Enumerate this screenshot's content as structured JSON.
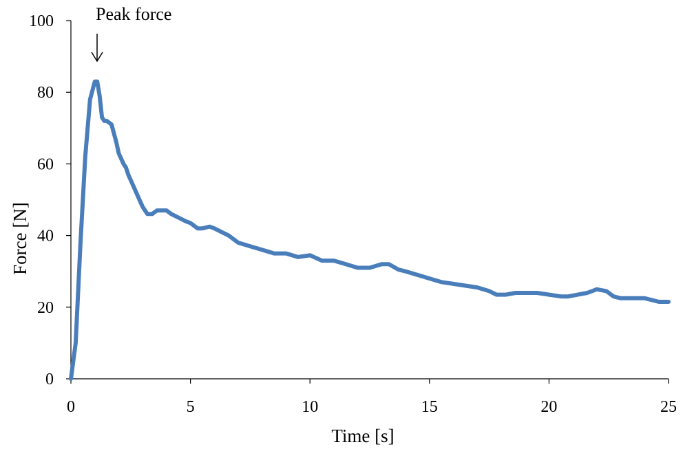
{
  "chart_data": {
    "type": "line",
    "title": "",
    "xlabel": "Time [s]",
    "ylabel": "Force [N]",
    "xlim": [
      0,
      25
    ],
    "ylim": [
      0,
      100
    ],
    "xticks": [
      0,
      5,
      10,
      15,
      20,
      25
    ],
    "yticks": [
      0,
      20,
      40,
      60,
      80,
      100
    ],
    "grid": false,
    "line_color": "#4a7ebb",
    "annotation": {
      "text": "Peak force",
      "x": 1.1,
      "y": 83
    },
    "series": [
      {
        "x": [
          0,
          0.2,
          0.4,
          0.6,
          0.8,
          1.0,
          1.1,
          1.2,
          1.3,
          1.4,
          1.5,
          1.7,
          1.9,
          2.0,
          2.2,
          2.3,
          2.4,
          2.6,
          2.8,
          3.0,
          3.2,
          3.4,
          3.6,
          3.8,
          4.0,
          4.2,
          4.5,
          4.8,
          5.0,
          5.3,
          5.5,
          5.8,
          6.0,
          6.3,
          6.6,
          7.0,
          7.5,
          8.0,
          8.5,
          9.0,
          9.5,
          10.0,
          10.5,
          11.0,
          11.5,
          12.0,
          12.5,
          13.0,
          13.3,
          13.7,
          14.0,
          14.5,
          15.0,
          15.5,
          16.0,
          16.5,
          17.0,
          17.5,
          17.8,
          18.2,
          18.6,
          19.0,
          19.5,
          20.0,
          20.5,
          20.8,
          21.2,
          21.6,
          22.0,
          22.4,
          22.7,
          23.0,
          23.3,
          23.7,
          24.0,
          24.3,
          24.6,
          25.0
        ],
        "y": [
          0,
          10,
          38,
          62,
          78,
          83,
          83,
          79,
          73,
          72,
          72,
          71,
          66,
          63,
          60,
          59,
          57,
          54,
          51,
          48,
          46,
          46,
          47,
          47,
          47,
          46,
          45,
          44,
          43.5,
          42,
          42,
          42.5,
          42,
          41,
          40,
          38,
          37,
          36,
          35,
          35,
          34,
          34.5,
          33,
          33,
          32,
          31,
          31,
          32,
          32,
          30.5,
          30,
          29,
          28,
          27,
          26.5,
          26,
          25.5,
          24.5,
          23.5,
          23.5,
          24,
          24,
          24,
          23.5,
          23,
          23,
          23.5,
          24,
          25,
          24.5,
          23,
          22.5,
          22.5,
          22.5,
          22.5,
          22,
          21.5,
          21.5
        ]
      }
    ]
  }
}
